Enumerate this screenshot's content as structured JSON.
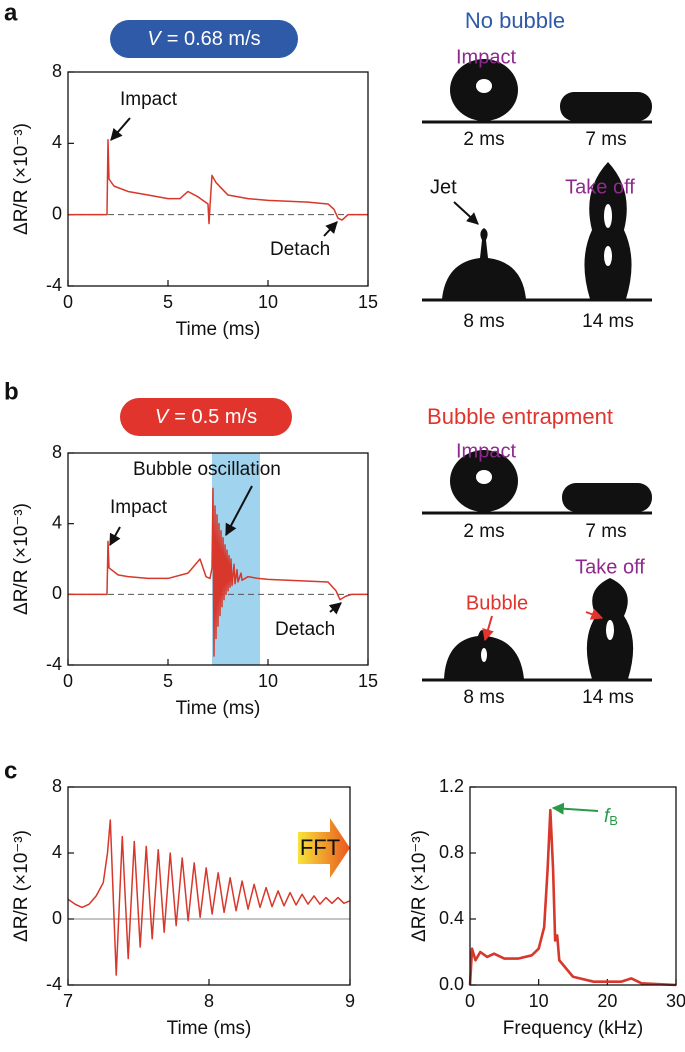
{
  "chart_data": [
    {
      "type": "line",
      "xlabel": "Time (ms)",
      "ylabel": "ΔR/R (×10⁻³)",
      "badge_var": "V",
      "badge_value": "= 0.68 m/s",
      "badge_color": "#2f5aa8",
      "annotations": [
        "Impact",
        "Detach"
      ],
      "x": [
        0,
        1.95,
        2.0,
        2.05,
        2.3,
        3,
        4,
        5,
        5.6,
        6,
        6.5,
        7.0,
        7.05,
        7.1,
        7.2,
        7.4,
        8,
        9,
        10,
        11,
        12,
        13,
        13.3,
        13.5,
        13.7,
        14,
        15
      ],
      "values": [
        0,
        0,
        4.2,
        2.0,
        1.6,
        1.3,
        1.1,
        0.9,
        0.9,
        1.3,
        1.0,
        0.6,
        -0.5,
        0.5,
        2.2,
        1.8,
        1.1,
        0.9,
        0.8,
        0.75,
        0.7,
        0.6,
        0.3,
        -0.2,
        -0.3,
        0,
        0
      ],
      "color": "#d8372b",
      "reference_line": 0,
      "xlim": [
        0,
        15
      ],
      "xticks": [
        0,
        5,
        10,
        15
      ],
      "ylim": [
        -4,
        8
      ],
      "yticks": [
        -4,
        0,
        4,
        8
      ]
    },
    {
      "type": "line",
      "xlabel": "Time (ms)",
      "ylabel": "ΔR/R (×10⁻³)",
      "badge_var": "V",
      "badge_value": "= 0.5 m/s",
      "badge_color": "#e0342c",
      "annotations": [
        "Impact",
        "Bubble oscillation",
        "Detach"
      ],
      "highlight": [
        7.2,
        9.6
      ],
      "highlight_color": "#9fd3ee",
      "x": [
        0,
        1.95,
        2.0,
        2.05,
        2.5,
        3,
        4,
        5,
        6,
        6.6,
        6.9,
        7.1,
        7.2,
        7.25,
        7.3,
        7.35,
        7.4,
        7.45,
        7.5,
        7.55,
        7.6,
        7.65,
        7.7,
        7.75,
        7.8,
        7.85,
        7.9,
        7.95,
        8.0,
        8.05,
        8.1,
        8.15,
        8.2,
        8.3,
        8.35,
        8.45,
        8.5,
        8.65,
        8.7,
        9.0,
        9.5,
        10,
        11,
        12,
        13,
        13.4,
        13.6,
        13.9,
        14.2,
        15
      ],
      "values": [
        0,
        0,
        3.0,
        1.5,
        1.1,
        1.0,
        0.9,
        0.9,
        1.2,
        2.0,
        1.0,
        0.9,
        1.5,
        6.0,
        -3.5,
        5.0,
        -2.5,
        4.5,
        -1.8,
        4.0,
        -1.2,
        3.6,
        -0.7,
        3.2,
        -0.3,
        2.8,
        0.0,
        2.5,
        0.2,
        2.2,
        0.4,
        2.0,
        0.5,
        1.7,
        0.6,
        1.4,
        0.7,
        1.2,
        0.8,
        1.0,
        0.9,
        0.85,
        0.8,
        0.75,
        0.7,
        0.2,
        -0.3,
        -0.1,
        0,
        0
      ],
      "color": "#d8372b",
      "reference_line": 0,
      "xlim": [
        0,
        15
      ],
      "xticks": [
        0,
        5,
        10,
        15
      ],
      "ylim": [
        -4,
        8
      ],
      "yticks": [
        -4,
        0,
        4,
        8
      ]
    },
    {
      "type": "line",
      "xlabel": "Time (ms)",
      "ylabel": "ΔR/R (×10⁻³)",
      "x": [
        7.0,
        7.05,
        7.1,
        7.15,
        7.2,
        7.25,
        7.28,
        7.3,
        7.342,
        7.385,
        7.427,
        7.47,
        7.512,
        7.555,
        7.597,
        7.64,
        7.682,
        7.725,
        7.767,
        7.81,
        7.852,
        7.895,
        7.937,
        7.98,
        8.022,
        8.065,
        8.107,
        8.15,
        8.192,
        8.235,
        8.277,
        8.32,
        8.362,
        8.405,
        8.447,
        8.49,
        8.532,
        8.575,
        8.617,
        8.66,
        8.702,
        8.745,
        8.787,
        8.83,
        8.872,
        8.915,
        8.957,
        9.0
      ],
      "values": [
        1.2,
        0.9,
        0.7,
        0.9,
        1.4,
        2.2,
        4.0,
        6.0,
        -3.4,
        5.0,
        -2.4,
        4.7,
        -1.7,
        4.4,
        -1.2,
        4.2,
        -0.8,
        4.0,
        -0.4,
        3.7,
        -0.1,
        3.4,
        0.1,
        3.1,
        0.3,
        2.8,
        0.4,
        2.5,
        0.5,
        2.3,
        0.6,
        2.1,
        0.7,
        1.9,
        0.75,
        1.7,
        0.8,
        1.6,
        0.85,
        1.5,
        0.9,
        1.4,
        0.9,
        1.3,
        0.95,
        1.3,
        0.95,
        1.1
      ],
      "color": "#d8372b",
      "reference_line": 0,
      "xlim": [
        7,
        9
      ],
      "xticks": [
        7,
        8,
        9
      ],
      "ylim": [
        -4,
        8
      ],
      "yticks": [
        -4,
        0,
        4,
        8
      ]
    },
    {
      "type": "line",
      "xlabel": "Frequency (kHz)",
      "ylabel": "ΔR/R (×10⁻³)",
      "annotation_symbol": "f",
      "annotation_subscript": "B",
      "annotation_color": "#2a9a4a",
      "x": [
        0,
        0.3,
        0.8,
        1.5,
        2.5,
        3.5,
        5,
        7,
        9,
        10,
        10.8,
        11.3,
        11.7,
        12.1,
        12.4,
        12.7,
        13,
        15,
        18,
        22,
        23.5,
        25,
        30
      ],
      "values": [
        0.0,
        0.22,
        0.15,
        0.2,
        0.17,
        0.19,
        0.16,
        0.16,
        0.18,
        0.22,
        0.35,
        0.7,
        1.06,
        0.7,
        0.27,
        0.3,
        0.15,
        0.05,
        0.02,
        0.02,
        0.04,
        0.01,
        0.0
      ],
      "color": "#d8372b",
      "xlim": [
        0,
        30
      ],
      "xticks": [
        0,
        10,
        20,
        30
      ],
      "ylim": [
        0,
        1.2
      ],
      "yticks": [
        {
          "value": 0,
          "label": "0.0"
        },
        0.4,
        0.8,
        1.2
      ]
    }
  ],
  "panels": [
    {
      "label": "a",
      "photo_title": "No bubble",
      "photo_labels": [
        "Impact",
        "Jet",
        "Take off"
      ],
      "captions": [
        "2 ms",
        "7 ms",
        "8 ms",
        "14 ms"
      ]
    },
    {
      "label": "b",
      "photo_title": "Bubble entrapment",
      "photo_labels": [
        "Impact",
        "Bubble",
        "Take off"
      ],
      "captions": [
        "2 ms",
        "7 ms",
        "8 ms",
        "14 ms"
      ]
    },
    {
      "label": "c",
      "arrow": "FFT"
    }
  ]
}
